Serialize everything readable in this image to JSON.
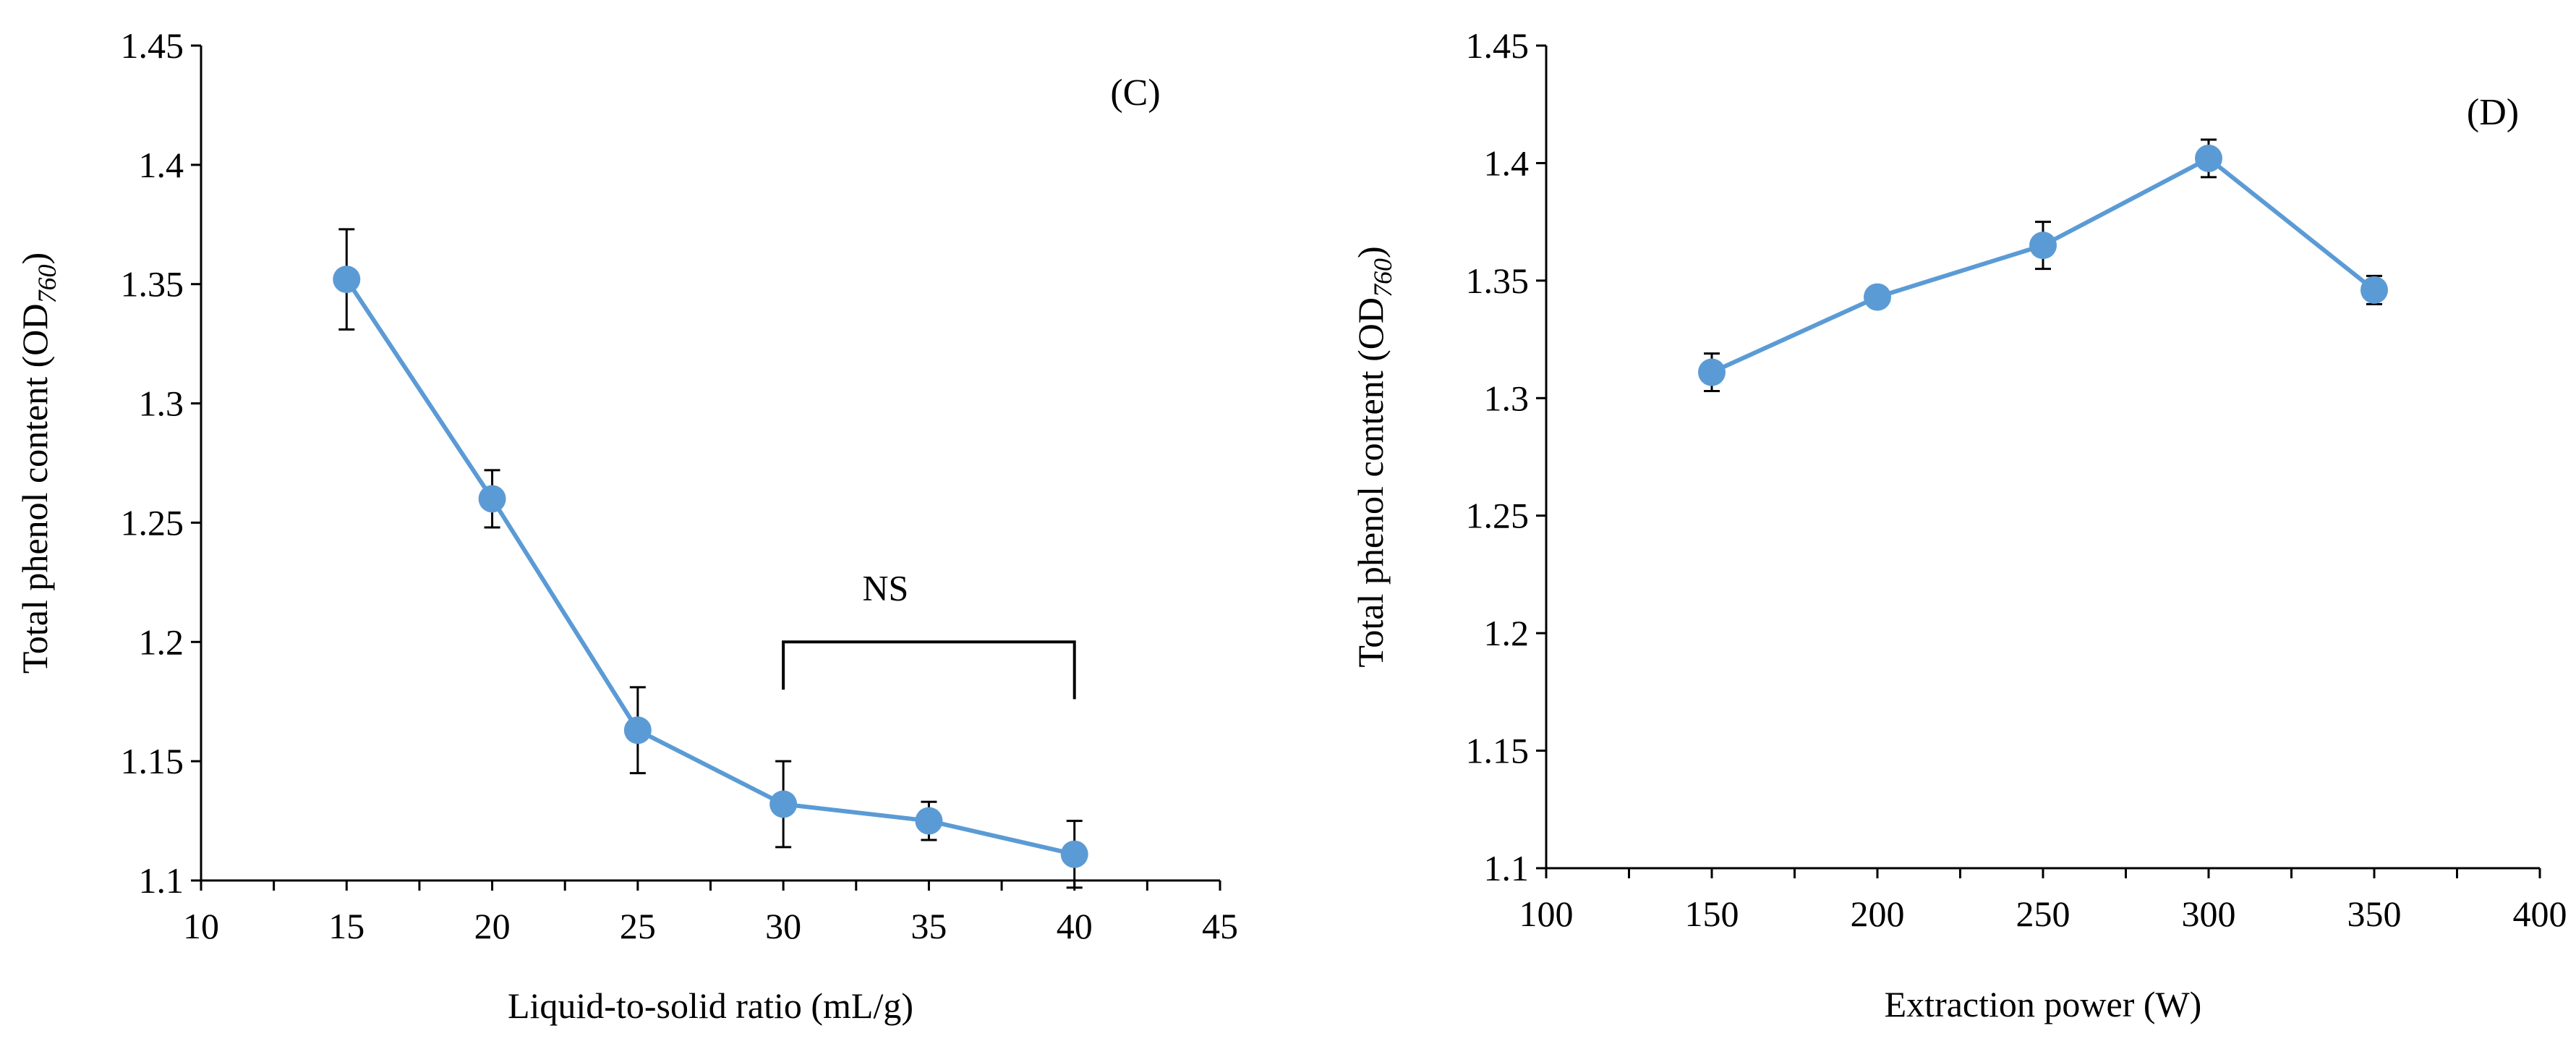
{
  "colors": {
    "series": "#5b9bd5",
    "axis": "#000000",
    "background": "#ffffff"
  },
  "chart_data": [
    {
      "type": "line",
      "panel_label": "(C)",
      "title": "",
      "xlabel": "Liquid-to-solid ratio (mL/g)",
      "ylabel": {
        "main": "Total phenol content (OD",
        "sub": "760",
        "close": ")"
      },
      "xlim": [
        10,
        45
      ],
      "ylim": [
        1.1,
        1.45
      ],
      "x_ticks": [
        10,
        15,
        20,
        25,
        30,
        35,
        40,
        45
      ],
      "x_tick_labels": [
        "10",
        "15",
        "20",
        "25",
        "30",
        "35",
        "40",
        "45"
      ],
      "y_ticks": [
        1.1,
        1.15,
        1.2,
        1.25,
        1.3,
        1.35,
        1.4,
        1.45
      ],
      "y_tick_labels": [
        "1.1",
        "1.15",
        "1.2",
        "1.25",
        "1.3",
        "1.35",
        "1.4",
        "1.45"
      ],
      "x_minor_step": 2.5,
      "series": [
        {
          "name": "Total phenol content",
          "x": [
            15,
            20,
            25,
            30,
            35,
            40
          ],
          "y": [
            1.352,
            1.26,
            1.163,
            1.132,
            1.125,
            1.111
          ],
          "error": [
            0.021,
            0.012,
            0.018,
            0.018,
            0.008,
            0.014
          ]
        }
      ],
      "annotations": [
        {
          "type": "bracket",
          "x_start": 30,
          "x_end": 40,
          "y": 1.2,
          "drop_left": 1.18,
          "drop_right": 1.176,
          "label": "NS"
        }
      ]
    },
    {
      "type": "line",
      "panel_label": "(D)",
      "title": "",
      "xlabel": "Extraction power (W)",
      "ylabel": {
        "main": "Total phenol content (OD",
        "sub": "760",
        "close": ")"
      },
      "xlim": [
        100,
        400
      ],
      "ylim": [
        1.1,
        1.45
      ],
      "x_ticks": [
        100,
        150,
        200,
        250,
        300,
        350,
        400
      ],
      "x_tick_labels": [
        "100",
        "150",
        "200",
        "250",
        "300",
        "350",
        "400"
      ],
      "y_ticks": [
        1.1,
        1.15,
        1.2,
        1.25,
        1.3,
        1.35,
        1.4,
        1.45
      ],
      "y_tick_labels": [
        "1.1",
        "1.15",
        "1.2",
        "1.25",
        "1.3",
        "1.35",
        "1.4",
        "1.45"
      ],
      "x_minor_step": 25,
      "series": [
        {
          "name": "Total phenol content",
          "x": [
            150,
            200,
            250,
            300,
            350
          ],
          "y": [
            1.311,
            1.343,
            1.365,
            1.402,
            1.346
          ],
          "error": [
            0.008,
            0.004,
            0.01,
            0.008,
            0.006
          ]
        }
      ],
      "annotations": []
    }
  ]
}
